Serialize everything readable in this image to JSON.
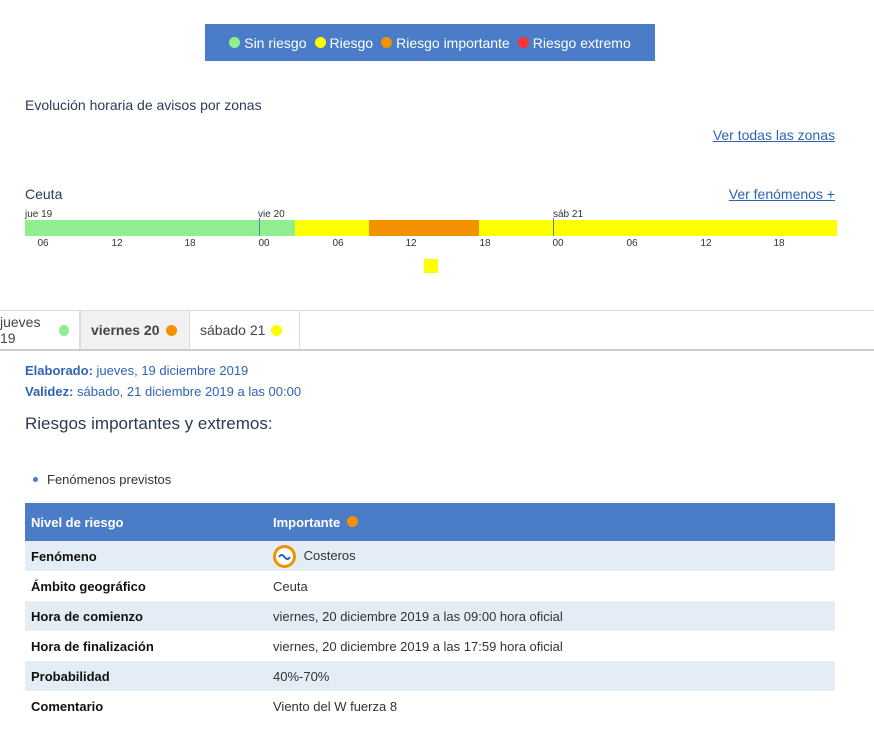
{
  "legend": {
    "items": [
      {
        "label": "Sin riesgo",
        "color": "#90ee90"
      },
      {
        "label": "Riesgo",
        "color": "#ffff00"
      },
      {
        "label": "Riesgo importante",
        "color": "#f39200"
      },
      {
        "label": "Riesgo extremo",
        "color": "#ff3333"
      }
    ]
  },
  "section_title": "Evolución horaria de avisos por zonas",
  "ver_todas": "Ver todas las zonas",
  "zone": "Ceuta",
  "ver_fenomenos": "Ver fenómenos +",
  "timeline": {
    "days": [
      "jue 19",
      "vie 20",
      "sáb 21"
    ],
    "ticks": [
      "06",
      "12",
      "18",
      "00",
      "06",
      "12",
      "18",
      "00",
      "06",
      "12",
      "18"
    ],
    "colors": {
      "green": "#90ee90",
      "yellow": "#ffff00",
      "orange": "#f39200"
    }
  },
  "tabs": [
    {
      "label": "jueves 19",
      "dot": "#90ee90"
    },
    {
      "label": "viernes 20",
      "dot": "#f39200"
    },
    {
      "label": "sábado 21",
      "dot": "#ffff00"
    }
  ],
  "meta": {
    "elaborado_label": "Elaborado:",
    "elaborado_value": " jueves, 19 diciembre 2019",
    "validez_label": "Validez:",
    "validez_value": " sábado, 21 diciembre 2019 a las 00:00"
  },
  "riesgos_title": "Riesgos importantes y extremos:",
  "bullet": "Fenómenos previstos",
  "table": {
    "header": {
      "key": "Nivel de riesgo",
      "value": "Importante",
      "dot": "#f39200"
    },
    "rows": [
      {
        "key": "Fenómeno",
        "value": "Costeros"
      },
      {
        "key": "Ámbito geográfico",
        "value": "Ceuta"
      },
      {
        "key": "Hora de comienzo",
        "value": "viernes, 20 diciembre 2019 a las 09:00 hora oficial"
      },
      {
        "key": "Hora de finalización",
        "value": "viernes, 20 diciembre 2019 a las 17:59 hora oficial"
      },
      {
        "key": "Probabilidad",
        "value": "40%-70%"
      },
      {
        "key": "Comentario",
        "value": "Viento del W fuerza 8"
      }
    ]
  }
}
